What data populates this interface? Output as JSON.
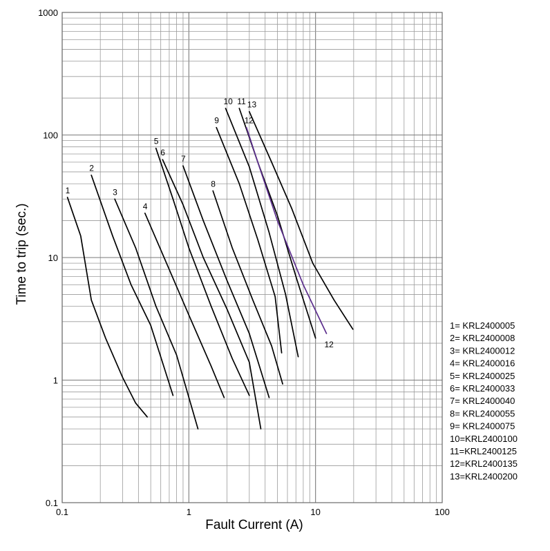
{
  "chart_data": {
    "type": "line",
    "title": "",
    "xlabel": "Fault Current (A)",
    "ylabel": "Time to trip (sec.)",
    "x_scale": "log",
    "y_scale": "log",
    "xlim": [
      0.1,
      100
    ],
    "ylim": [
      0.1,
      1000
    ],
    "grid": true,
    "x_ticks": [
      {
        "value": 0.1,
        "label": "0.1"
      },
      {
        "value": 1,
        "label": "1"
      },
      {
        "value": 10,
        "label": "10"
      },
      {
        "value": 100,
        "label": "100"
      }
    ],
    "y_ticks": [
      {
        "value": 0.1,
        "label": "0.1"
      },
      {
        "value": 1,
        "label": "1"
      },
      {
        "value": 10,
        "label": "10"
      },
      {
        "value": 100,
        "label": "100"
      },
      {
        "value": 1000,
        "label": "1000"
      }
    ],
    "legend_position": "right",
    "legend": [
      "1= KRL2400005",
      "2= KRL2400008",
      "3= KRL2400012",
      "4= KRL2400016",
      "5= KRL2400025",
      "6= KRL2400033",
      "7= KRL2400040",
      "8= KRL2400055",
      "9= KRL2400075",
      "10=KRL2400100",
      "11=KRL2400125",
      "12=KRL2400135",
      "13=KRL2400200"
    ],
    "series": [
      {
        "label": "1",
        "color": "#000000",
        "points": [
          [
            0.11,
            31
          ],
          [
            0.14,
            15
          ],
          [
            0.17,
            4.5
          ],
          [
            0.22,
            2.2
          ],
          [
            0.3,
            1.05
          ],
          [
            0.38,
            0.65
          ],
          [
            0.47,
            0.5
          ]
        ]
      },
      {
        "label": "2",
        "color": "#000000",
        "points": [
          [
            0.17,
            47
          ],
          [
            0.25,
            15
          ],
          [
            0.35,
            6
          ],
          [
            0.5,
            2.8
          ],
          [
            0.75,
            0.75
          ]
        ]
      },
      {
        "label": "3",
        "color": "#000000",
        "points": [
          [
            0.26,
            30
          ],
          [
            0.38,
            12
          ],
          [
            0.55,
            4
          ],
          [
            0.8,
            1.6
          ],
          [
            1.18,
            0.4
          ]
        ]
      },
      {
        "label": "4",
        "color": "#000000",
        "points": [
          [
            0.45,
            23
          ],
          [
            0.7,
            8
          ],
          [
            1.0,
            3.4
          ],
          [
            1.5,
            1.3
          ],
          [
            1.9,
            0.72
          ]
        ]
      },
      {
        "label": "5",
        "color": "#000000",
        "points": [
          [
            0.55,
            78
          ],
          [
            0.75,
            30
          ],
          [
            1.0,
            12
          ],
          [
            1.5,
            4
          ],
          [
            2.2,
            1.5
          ],
          [
            3.0,
            0.75
          ]
        ]
      },
      {
        "label": "6",
        "color": "#000000",
        "points": [
          [
            0.62,
            63
          ],
          [
            0.9,
            27
          ],
          [
            1.3,
            10
          ],
          [
            2.0,
            3.8
          ],
          [
            3.0,
            1.4
          ],
          [
            3.7,
            0.4
          ]
        ]
      },
      {
        "label": "7",
        "color": "#000000",
        "points": [
          [
            0.9,
            56
          ],
          [
            1.3,
            20
          ],
          [
            2.0,
            6.5
          ],
          [
            3.0,
            2.4
          ],
          [
            4.3,
            0.72
          ]
        ]
      },
      {
        "label": "8",
        "color": "#000000",
        "points": [
          [
            1.55,
            35
          ],
          [
            2.2,
            12
          ],
          [
            3.2,
            4.5
          ],
          [
            4.5,
            1.9
          ],
          [
            5.5,
            0.93
          ]
        ]
      },
      {
        "label": "9",
        "color": "#000000",
        "points": [
          [
            1.65,
            115
          ],
          [
            2.5,
            40
          ],
          [
            3.5,
            14
          ],
          [
            4.8,
            4.8
          ],
          [
            5.4,
            1.67
          ]
        ]
      },
      {
        "label": "10",
        "color": "#000000",
        "points": [
          [
            1.95,
            165
          ],
          [
            3.0,
            55
          ],
          [
            4.3,
            16
          ],
          [
            5.8,
            5
          ],
          [
            7.3,
            1.55
          ]
        ]
      },
      {
        "label": "11",
        "color": "#000000",
        "points": [
          [
            2.5,
            165
          ],
          [
            3.5,
            60
          ],
          [
            5.0,
            22
          ],
          [
            7.0,
            7
          ],
          [
            10.0,
            2.2
          ]
        ]
      },
      {
        "label": "12",
        "color": "#5b2d8c",
        "points": [
          [
            2.85,
            115
          ],
          [
            3.5,
            60
          ],
          [
            5.0,
            20
          ],
          [
            8.0,
            6
          ],
          [
            12.2,
            2.4
          ]
        ]
      },
      {
        "label": "13",
        "color": "#000000",
        "points": [
          [
            3.0,
            155
          ],
          [
            4.5,
            60
          ],
          [
            6.5,
            25
          ],
          [
            9.5,
            9
          ],
          [
            14.0,
            4.5
          ],
          [
            19.7,
            2.6
          ]
        ]
      }
    ]
  }
}
